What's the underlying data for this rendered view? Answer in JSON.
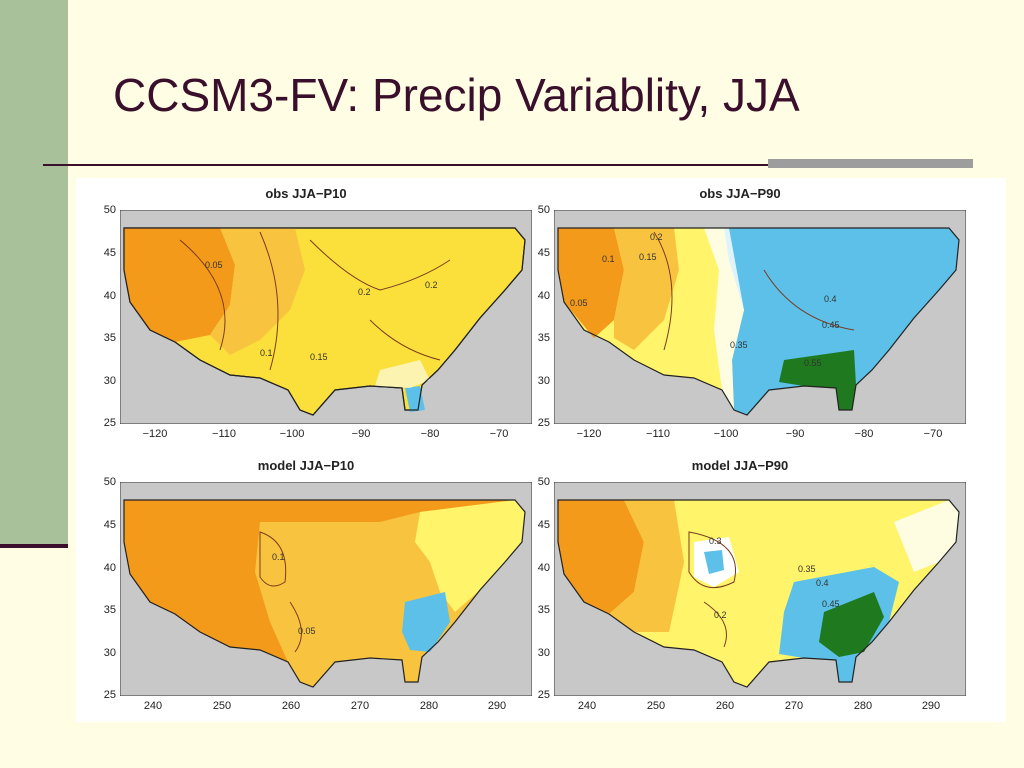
{
  "slide": {
    "title": "CCSM3-FV: Precip Variablity, JJA"
  },
  "colors": {
    "background": "#fffde3",
    "accent_bar": "#a9c19b",
    "rule": "#3a0f2c",
    "title": "#3a0f2c",
    "ocean": "#c8c8c8",
    "low": "#f39a1a",
    "mid": "#fff46a",
    "high": "#5cc0e8",
    "highest": "#1f7a1f"
  },
  "panels": [
    {
      "title": "obs JJA−P10",
      "y_ticks": [
        "50",
        "45",
        "40",
        "35",
        "30",
        "25"
      ],
      "x_ticks": [
        "−120",
        "−110",
        "−100",
        "−90",
        "−80",
        "−70"
      ],
      "contour_labels": [
        "0.05",
        "0.1",
        "0.15",
        "0.2",
        "0.2"
      ]
    },
    {
      "title": "obs JJA−P90",
      "y_ticks": [
        "50",
        "45",
        "40",
        "35",
        "30",
        "25"
      ],
      "x_ticks": [
        "−120",
        "−110",
        "−100",
        "−90",
        "−80",
        "−70"
      ],
      "contour_labels": [
        "0.1",
        "0.15",
        "0.2",
        "0.05",
        "0.35",
        "0.4",
        "0.45",
        "0.55"
      ]
    },
    {
      "title": "model JJA−P10",
      "y_ticks": [
        "50",
        "45",
        "40",
        "35",
        "30",
        "25"
      ],
      "x_ticks": [
        "240",
        "250",
        "260",
        "270",
        "280",
        "290"
      ],
      "contour_labels": [
        "0.1",
        "0.05"
      ]
    },
    {
      "title": "model JJA−P90",
      "y_ticks": [
        "50",
        "45",
        "40",
        "35",
        "30",
        "25"
      ],
      "x_ticks": [
        "240",
        "250",
        "260",
        "270",
        "280",
        "290"
      ],
      "contour_labels": [
        "0.3",
        "0.2",
        "0.35",
        "0.4",
        "0.45"
      ]
    }
  ]
}
